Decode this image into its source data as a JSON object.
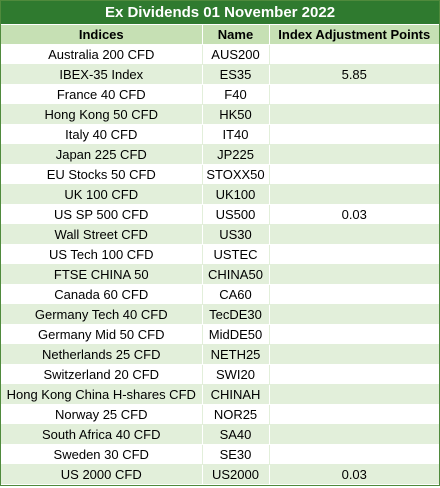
{
  "title": "Ex Dividends 01 November 2022",
  "headers": {
    "indices": "Indices",
    "name": "Name",
    "adjustment": "Index Adjustment Points"
  },
  "rows": [
    {
      "index": "Australia 200 CFD",
      "name": "AUS200",
      "adjustment": ""
    },
    {
      "index": "IBEX-35 Index",
      "name": "ES35",
      "adjustment": "5.85"
    },
    {
      "index": "France 40 CFD",
      "name": "F40",
      "adjustment": ""
    },
    {
      "index": "Hong Kong 50 CFD",
      "name": "HK50",
      "adjustment": ""
    },
    {
      "index": "Italy 40 CFD",
      "name": "IT40",
      "adjustment": ""
    },
    {
      "index": "Japan 225 CFD",
      "name": "JP225",
      "adjustment": ""
    },
    {
      "index": "EU Stocks 50 CFD",
      "name": "STOXX50",
      "adjustment": ""
    },
    {
      "index": "UK 100 CFD",
      "name": "UK100",
      "adjustment": ""
    },
    {
      "index": "US SP 500 CFD",
      "name": "US500",
      "adjustment": "0.03"
    },
    {
      "index": "Wall Street CFD",
      "name": "US30",
      "adjustment": ""
    },
    {
      "index": "US Tech 100 CFD",
      "name": "USTEC",
      "adjustment": ""
    },
    {
      "index": "FTSE CHINA 50",
      "name": "CHINA50",
      "adjustment": ""
    },
    {
      "index": "Canada 60 CFD",
      "name": "CA60",
      "adjustment": ""
    },
    {
      "index": "Germany Tech 40 CFD",
      "name": "TecDE30",
      "adjustment": ""
    },
    {
      "index": "Germany Mid 50 CFD",
      "name": "MidDE50",
      "adjustment": ""
    },
    {
      "index": "Netherlands 25 CFD",
      "name": "NETH25",
      "adjustment": ""
    },
    {
      "index": "Switzerland 20 CFD",
      "name": "SWI20",
      "adjustment": ""
    },
    {
      "index": "Hong Kong China H-shares CFD",
      "name": "CHINAH",
      "adjustment": ""
    },
    {
      "index": "Norway 25 CFD",
      "name": "NOR25",
      "adjustment": ""
    },
    {
      "index": "South Africa 40 CFD",
      "name": "SA40",
      "adjustment": ""
    },
    {
      "index": "Sweden 30 CFD",
      "name": "SE30",
      "adjustment": ""
    },
    {
      "index": "US 2000 CFD",
      "name": "US2000",
      "adjustment": "0.03"
    }
  ],
  "colors": {
    "title_background": "#2f7a2f",
    "header_background": "#c6e0b4",
    "band_background": "#e2efda"
  }
}
